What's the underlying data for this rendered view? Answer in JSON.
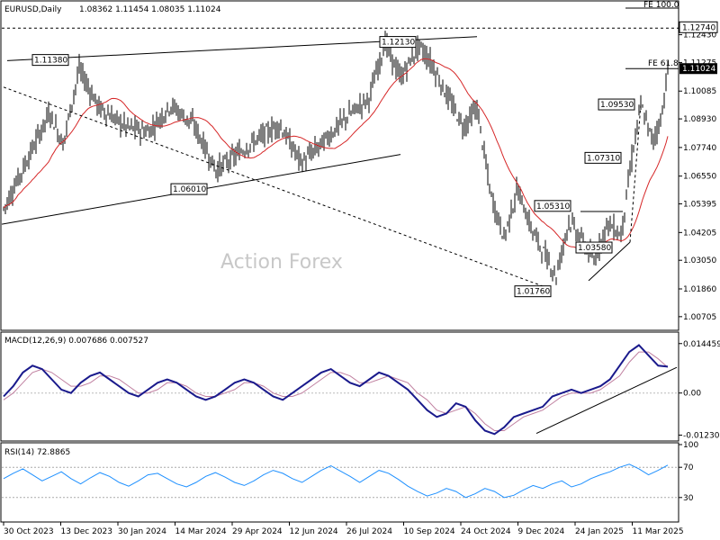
{
  "chart_data": [
    {
      "type": "candlestick",
      "title": "EURUSD,Daily",
      "ohlc_header": "1.08362 1.11454 1.08035 1.11024",
      "watermark": "Action Forex",
      "y_ticks": [
        "1.12430",
        "1.11275",
        "1.10085",
        "1.08930",
        "1.07740",
        "1.06550",
        "1.05395",
        "1.04205",
        "1.03050",
        "1.01860",
        "1.00705"
      ],
      "ylim": [
        1.004,
        1.132
      ],
      "x_ticks": [
        "30 Oct 2023",
        "13 Dec 2023",
        "30 Jan 2024",
        "14 Mar 2024",
        "29 Apr 2024",
        "12 Jun 2024",
        "26 Jul 2024",
        "10 Sep 2024",
        "24 Oct 2024",
        "9 Dec 2024",
        "24 Jan 2025",
        "11 Mar 2025"
      ],
      "price_labels": [
        {
          "label": "1.11380",
          "value": 1.1138
        },
        {
          "label": "1.12130",
          "value": 1.1213
        },
        {
          "label": "1.06010",
          "value": 1.0601
        },
        {
          "label": "1.09530",
          "value": 1.0953
        },
        {
          "label": "1.07310",
          "value": 1.0731
        },
        {
          "label": "1.05310",
          "value": 1.0531
        },
        {
          "label": "1.03580",
          "value": 1.0358
        },
        {
          "label": "1.01760",
          "value": 1.0176
        }
      ],
      "fib_levels": [
        {
          "label": "FE 100.0",
          "value": 1.1274,
          "tag": "1.12740"
        },
        {
          "label": "FE 61.8",
          "value": 1.1102,
          "tag": "1.11024"
        }
      ],
      "moving_average": {
        "name": "MA",
        "color": "#d62728"
      },
      "colors": {
        "candles": "#000000",
        "ma": "#d62728",
        "trendline": "#000000"
      }
    },
    {
      "type": "line",
      "title": "MACD(12,26,9) 0.007686 0.007527",
      "y_ticks": [
        "0.014459",
        "0.00",
        "-0.012303"
      ],
      "ylim": [
        -0.0135,
        0.0165
      ],
      "series": [
        {
          "name": "MACD",
          "color": "#1a1a8c"
        },
        {
          "name": "Signal",
          "color": "#c080a0"
        }
      ],
      "values_macd": [
        -0.001,
        0.002,
        0.006,
        0.008,
        0.007,
        0.004,
        0.001,
        0.0,
        0.003,
        0.005,
        0.006,
        0.004,
        0.002,
        0.0,
        -0.001,
        0.001,
        0.003,
        0.004,
        0.003,
        0.001,
        -0.001,
        -0.002,
        -0.001,
        0.001,
        0.003,
        0.004,
        0.003,
        0.001,
        -0.001,
        -0.002,
        0.0,
        0.002,
        0.004,
        0.006,
        0.007,
        0.005,
        0.003,
        0.002,
        0.004,
        0.006,
        0.005,
        0.003,
        0.001,
        -0.002,
        -0.005,
        -0.007,
        -0.006,
        -0.003,
        -0.004,
        -0.008,
        -0.011,
        -0.012,
        -0.01,
        -0.007,
        -0.006,
        -0.005,
        -0.004,
        -0.001,
        0.0,
        0.001,
        0.0,
        0.001,
        0.002,
        0.004,
        0.008,
        0.012,
        0.014,
        0.011,
        0.008,
        0.0077
      ],
      "values_signal": [
        -0.002,
        0.0,
        0.003,
        0.006,
        0.007,
        0.006,
        0.004,
        0.002,
        0.002,
        0.003,
        0.005,
        0.005,
        0.004,
        0.002,
        0.0,
        0.0,
        0.001,
        0.003,
        0.003,
        0.002,
        0.0,
        -0.001,
        -0.001,
        0.0,
        0.001,
        0.003,
        0.003,
        0.002,
        0.0,
        -0.001,
        -0.001,
        0.0,
        0.002,
        0.004,
        0.006,
        0.006,
        0.005,
        0.003,
        0.003,
        0.004,
        0.005,
        0.004,
        0.003,
        0.0,
        -0.002,
        -0.005,
        -0.006,
        -0.005,
        -0.004,
        -0.006,
        -0.009,
        -0.011,
        -0.011,
        -0.009,
        -0.007,
        -0.006,
        -0.005,
        -0.003,
        -0.001,
        0.0,
        0.0,
        0.0,
        0.001,
        0.003,
        0.005,
        0.009,
        0.012,
        0.012,
        0.01,
        0.0075
      ]
    },
    {
      "type": "line",
      "title": "RSI(14) 72.8865",
      "y_ticks": [
        "100",
        "70",
        "30",
        "0"
      ],
      "ylim": [
        0,
        100
      ],
      "series": [
        {
          "name": "RSI",
          "color": "#1e90ff"
        }
      ],
      "values": [
        55,
        62,
        68,
        60,
        52,
        58,
        64,
        55,
        48,
        56,
        63,
        58,
        50,
        45,
        52,
        60,
        62,
        55,
        48,
        44,
        50,
        58,
        63,
        57,
        50,
        46,
        52,
        60,
        66,
        62,
        55,
        50,
        58,
        66,
        72,
        65,
        58,
        50,
        58,
        66,
        62,
        54,
        45,
        38,
        32,
        36,
        42,
        38,
        30,
        35,
        42,
        38,
        30,
        33,
        40,
        46,
        42,
        48,
        52,
        44,
        48,
        55,
        60,
        64,
        70,
        74,
        68,
        60,
        66,
        72.9
      ]
    }
  ]
}
